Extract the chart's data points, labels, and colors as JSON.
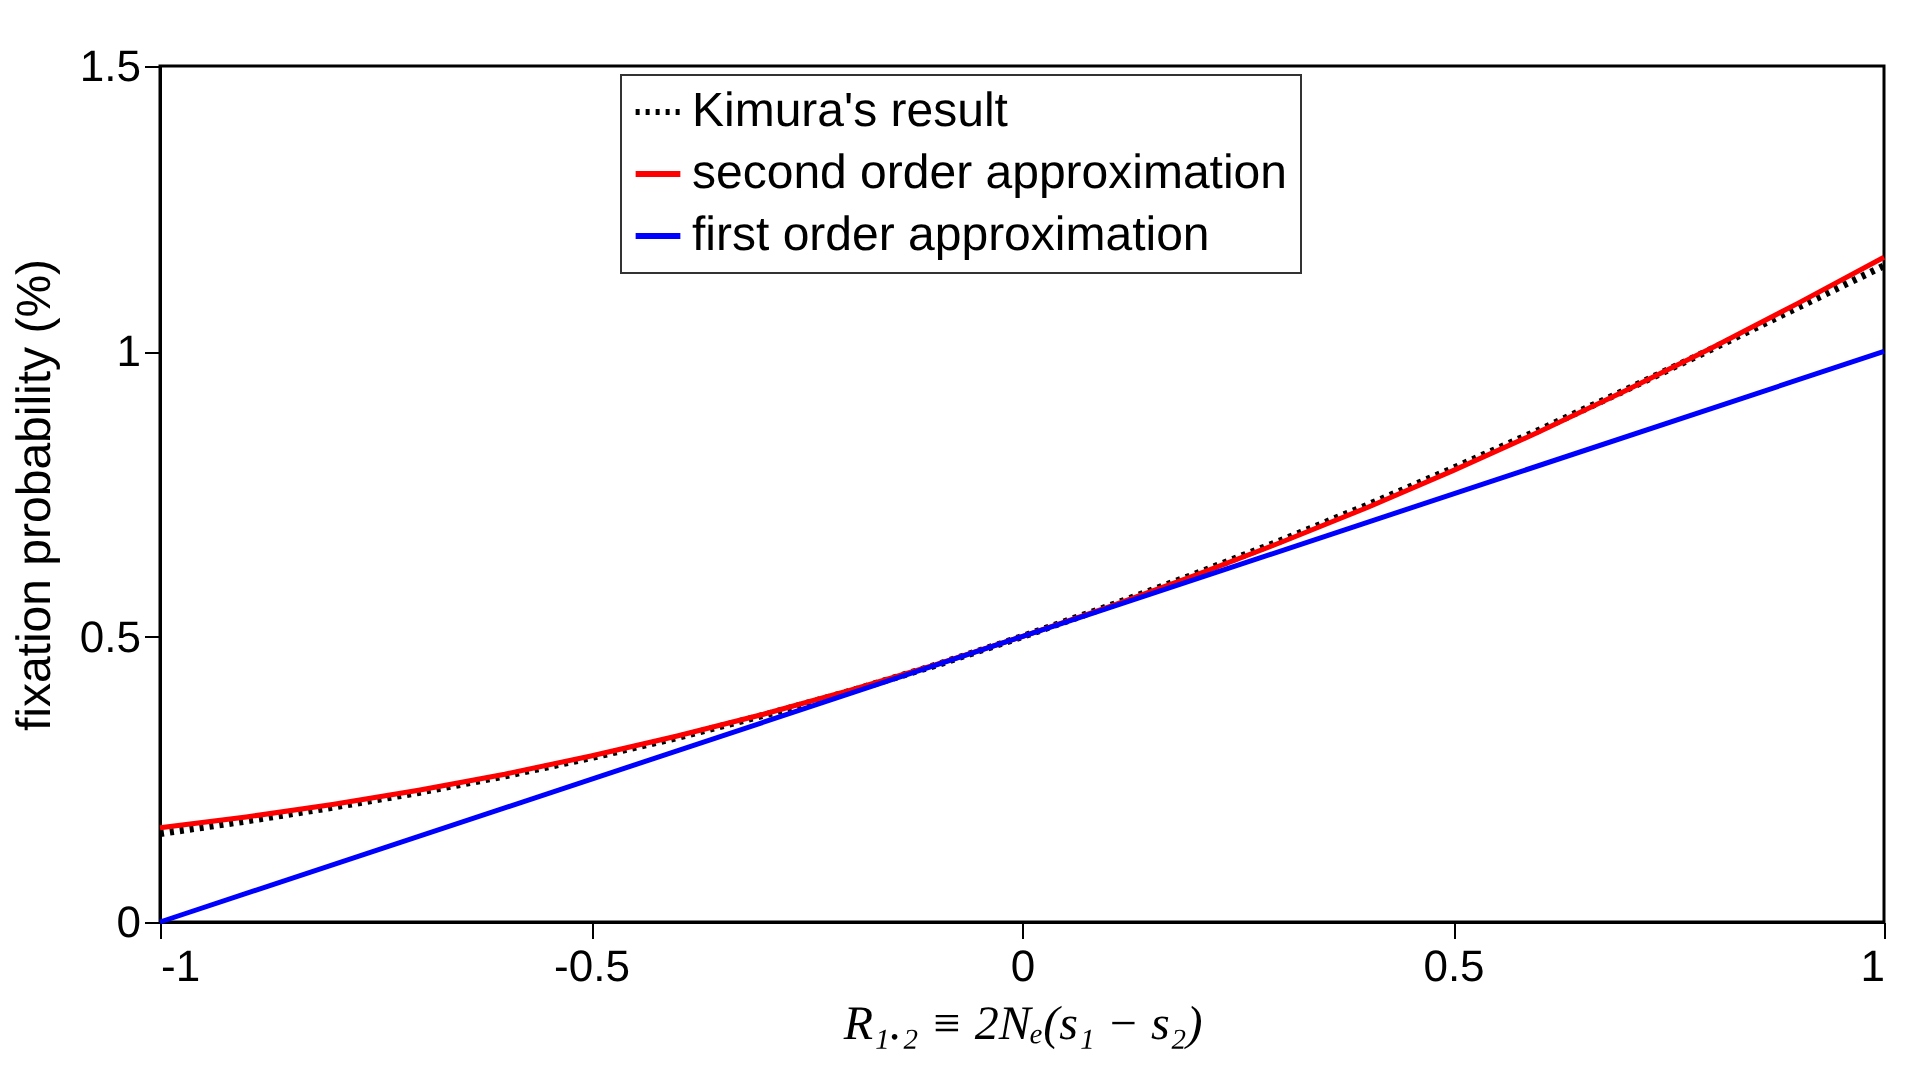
{
  "chart_data": {
    "type": "line",
    "xlabel": "R₁.₂ ≡ 2Nₑ(s₁ − s₂)",
    "ylabel": "fixation probability (%)",
    "xlim": [
      -1,
      1
    ],
    "ylim": [
      0,
      1.5
    ],
    "xticks": [
      -1,
      -0.5,
      0,
      0.5,
      1
    ],
    "yticks": [
      0,
      0.5,
      1,
      1.5
    ],
    "grid": false,
    "legend": "top",
    "x": [
      -1,
      -0.9,
      -0.8,
      -0.7,
      -0.6,
      -0.5,
      -0.4,
      -0.3,
      -0.2,
      -0.1,
      0,
      0.1,
      0.2,
      0.3,
      0.4,
      0.5,
      0.6,
      0.7,
      0.8,
      0.9,
      1
    ],
    "series": [
      {
        "name": "Kimura's result",
        "color": "#000000",
        "line_style": "dotted",
        "values": [
          0.155,
          0.177,
          0.201,
          0.227,
          0.256,
          0.288,
          0.323,
          0.362,
          0.404,
          0.45,
          0.5,
          0.553,
          0.609,
          0.668,
          0.73,
          0.795,
          0.862,
          0.932,
          1.004,
          1.077,
          1.15
        ]
      },
      {
        "name": "second order approximation",
        "color": "#ff0000",
        "line_style": "solid",
        "values": [
          0.165,
          0.184,
          0.206,
          0.231,
          0.259,
          0.291,
          0.326,
          0.364,
          0.406,
          0.451,
          0.5,
          0.552,
          0.607,
          0.665,
          0.726,
          0.791,
          0.859,
          0.931,
          1.006,
          1.084,
          1.165
        ]
      },
      {
        "name": "first order approximation",
        "color": "#0000ff",
        "line_style": "solid",
        "x": [
          -1,
          0,
          1
        ],
        "values": [
          0,
          0.5,
          1
        ]
      }
    ]
  }
}
